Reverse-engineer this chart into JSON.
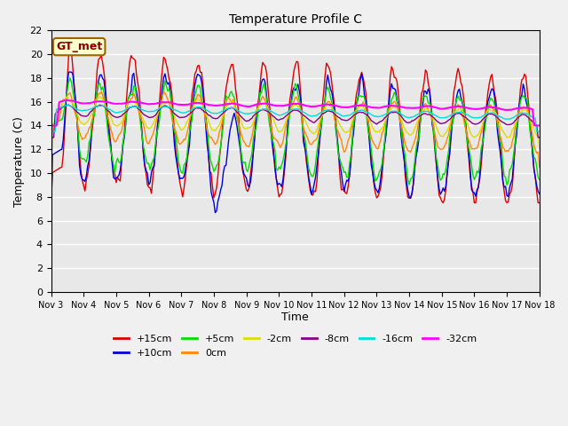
{
  "title": "Temperature Profile C",
  "xlabel": "Time",
  "ylabel": "Temperature (C)",
  "ylim": [
    0,
    22
  ],
  "annotation": "GT_met",
  "plot_bg": "#e8e8e8",
  "fig_bg": "#f0f0f0",
  "series_order": [
    "+15cm",
    "+10cm",
    "+5cm",
    "0cm",
    "-2cm",
    "-8cm",
    "-16cm",
    "-32cm"
  ],
  "series_colors": {
    "+15cm": "#dd0000",
    "+10cm": "#0000dd",
    "+5cm": "#00dd00",
    "0cm": "#ff8800",
    "-2cm": "#dddd00",
    "-8cm": "#880088",
    "-16cm": "#00dddd",
    "-32cm": "#ff00ff"
  },
  "xtick_labels": [
    "Nov 3",
    "Nov 4",
    "Nov 5",
    "Nov 6",
    "Nov 7",
    "Nov 8",
    "Nov 9",
    "Nov 10",
    "Nov 11",
    "Nov 12",
    "Nov 13",
    "Nov 14",
    "Nov 15",
    "Nov 16",
    "Nov 17",
    "Nov 18"
  ],
  "ytick_positions": [
    0,
    2,
    4,
    6,
    8,
    10,
    12,
    14,
    16,
    18,
    20,
    22
  ],
  "legend_row1": [
    "+15cm",
    "+10cm",
    "+5cm",
    "0cm",
    "-2cm",
    "-8cm"
  ],
  "legend_row2": [
    "-16cm",
    "-32cm"
  ]
}
